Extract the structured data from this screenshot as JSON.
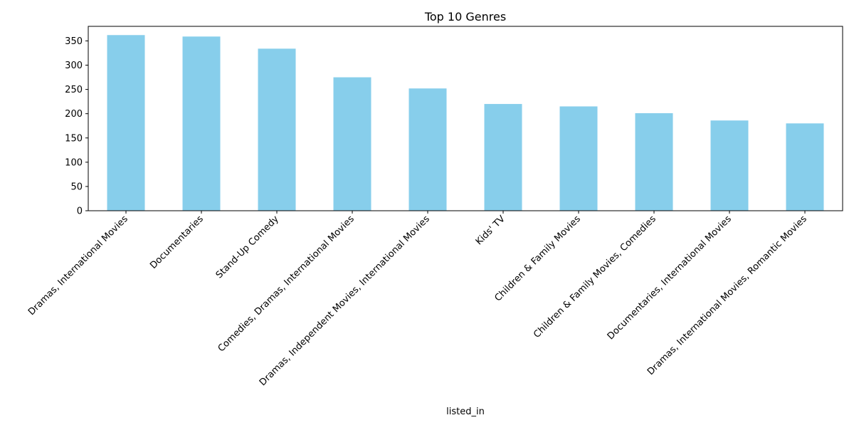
{
  "chart_data": {
    "type": "bar",
    "title": "Top 10 Genres",
    "xlabel": "listed_in",
    "ylabel": "",
    "categories": [
      "Dramas, International Movies",
      "Documentaries",
      "Stand-Up Comedy",
      "Comedies, Dramas, International Movies",
      "Dramas, Independent Movies, International Movies",
      "Kids' TV",
      "Children & Family Movies",
      "Children & Family Movies, Comedies",
      "Documentaries, International Movies",
      "Dramas, International Movies, Romantic Movies"
    ],
    "values": [
      362,
      359,
      334,
      275,
      252,
      220,
      215,
      201,
      186,
      180
    ],
    "ylim": [
      0,
      380
    ],
    "yticks": [
      0,
      50,
      100,
      150,
      200,
      250,
      300,
      350
    ],
    "bar_color": "#87CEEB",
    "grid": false,
    "legend": null
  }
}
